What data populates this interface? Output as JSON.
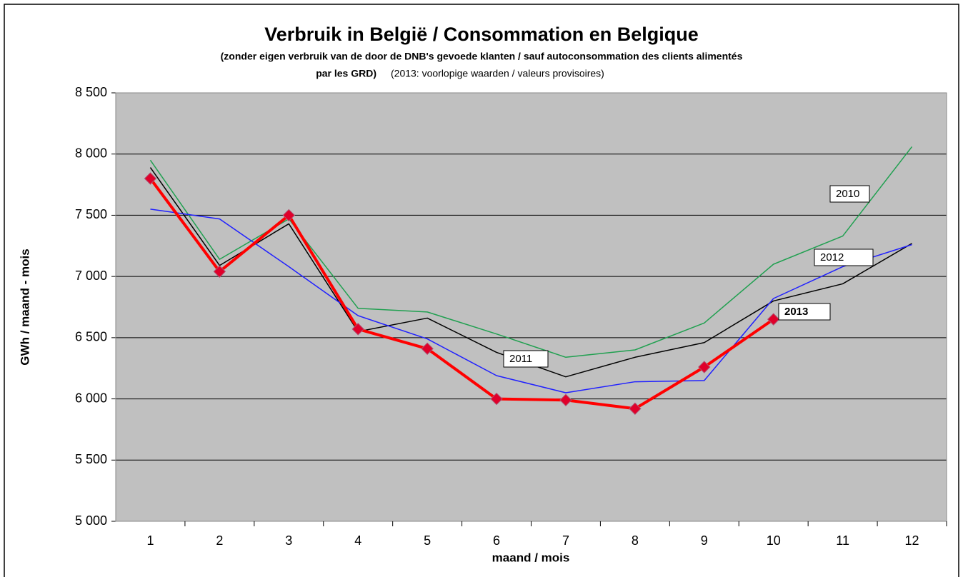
{
  "chart_data": {
    "type": "line",
    "title": "Verbruik in België / Consommation en Belgique",
    "subtitle": [
      "(zonder eigen verbruik van de door de DNB's gevoede  klanten / sauf autoconsommation des clients alimentés",
      "par les GRD)",
      "(2013: voorlopige waarden / valeurs provisoires)"
    ],
    "xlabel": "maand / mois",
    "ylabel": "GWh / maand - mois",
    "categories": [
      "1",
      "2",
      "3",
      "4",
      "5",
      "6",
      "7",
      "8",
      "9",
      "10",
      "11",
      "12"
    ],
    "ylim": [
      5000,
      8500
    ],
    "yticks": [
      {
        "value": 5000,
        "label": "5 000"
      },
      {
        "value": 5500,
        "label": "5 500"
      },
      {
        "value": 6000,
        "label": "6 000"
      },
      {
        "value": 6500,
        "label": "6 500"
      },
      {
        "value": 7000,
        "label": "7 000"
      },
      {
        "value": 7500,
        "label": "7 500"
      },
      {
        "value": 8000,
        "label": "8 000"
      },
      {
        "value": 8500,
        "label": "8 500"
      }
    ],
    "grid": true,
    "series": [
      {
        "name": "2010",
        "color": "#20a050",
        "values": [
          7950,
          7140,
          7470,
          6740,
          6710,
          6530,
          6340,
          6400,
          6620,
          7100,
          7330,
          8060
        ]
      },
      {
        "name": "2011",
        "color": "#000000",
        "values": [
          7890,
          7090,
          7430,
          6550,
          6660,
          6380,
          6180,
          6340,
          6460,
          6800,
          6940,
          7270
        ]
      },
      {
        "name": "2012",
        "color": "#2020ff",
        "values": [
          7550,
          7470,
          7080,
          6680,
          6490,
          6190,
          6050,
          6140,
          6150,
          6820,
          7080,
          7260
        ]
      },
      {
        "name": "2013",
        "color": "#ff0000",
        "values": [
          7800,
          7040,
          7500,
          6570,
          6410,
          6000,
          5990,
          5920,
          6260,
          6650,
          null,
          null
        ]
      }
    ]
  }
}
